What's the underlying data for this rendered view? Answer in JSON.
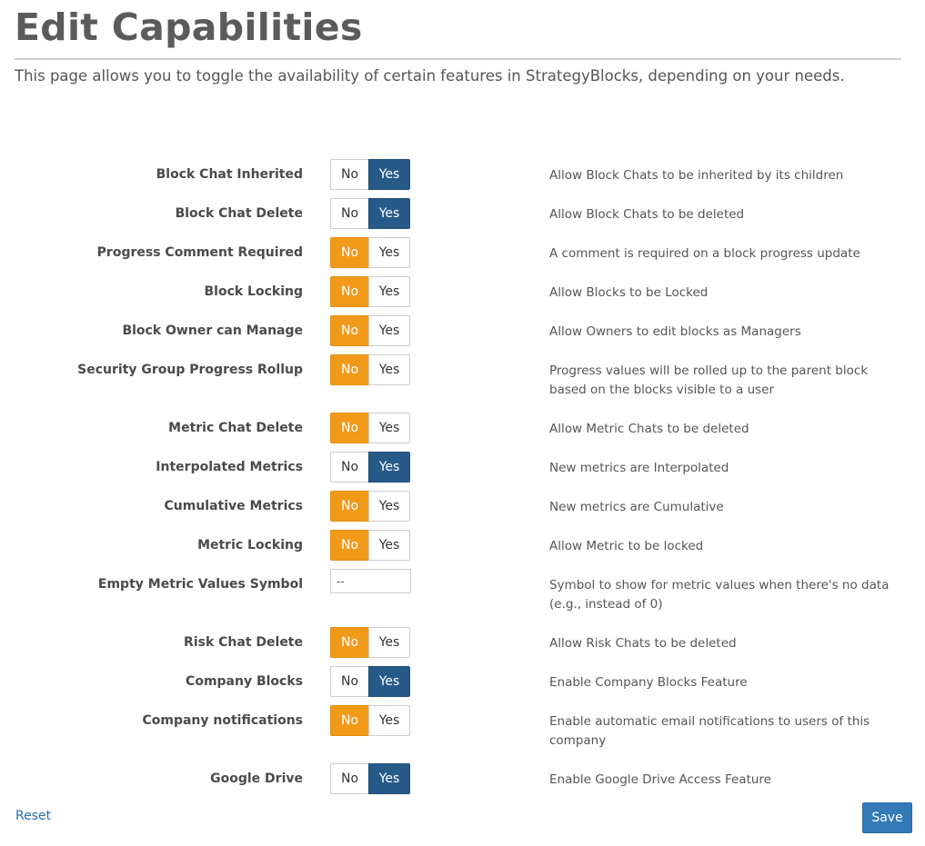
{
  "header": {
    "title": "Edit Capabilities",
    "intro": "This page allows you to toggle the availability of certain features in StrategyBlocks, depending on your needs."
  },
  "toggle_labels": {
    "no": "No",
    "yes": "Yes"
  },
  "colors": {
    "no_active": "#f19a1a",
    "yes_active": "#265a88",
    "link": "#2a6db0"
  },
  "settings": [
    {
      "label": "Block Chat Inherited",
      "type": "toggle",
      "value": "Yes",
      "description": "Allow Block Chats to be inherited by its children"
    },
    {
      "label": "Block Chat Delete",
      "type": "toggle",
      "value": "Yes",
      "description": "Allow Block Chats to be deleted"
    },
    {
      "label": "Progress Comment Required",
      "type": "toggle",
      "value": "No",
      "description": "A comment is required on a block progress update"
    },
    {
      "label": "Block Locking",
      "type": "toggle",
      "value": "No",
      "description": "Allow Blocks to be Locked"
    },
    {
      "label": "Block Owner can Manage",
      "type": "toggle",
      "value": "No",
      "description": "Allow Owners to edit blocks as Managers"
    },
    {
      "label": "Security Group Progress Rollup",
      "type": "toggle",
      "value": "No",
      "description": "Progress values will be rolled up to the parent block based on the blocks visible to a user"
    },
    {
      "label": "Metric Chat Delete",
      "type": "toggle",
      "value": "No",
      "description": "Allow Metric Chats to be deleted"
    },
    {
      "label": "Interpolated Metrics",
      "type": "toggle",
      "value": "Yes",
      "description": "New metrics are Interpolated"
    },
    {
      "label": "Cumulative Metrics",
      "type": "toggle",
      "value": "No",
      "description": "New metrics are Cumulative"
    },
    {
      "label": "Metric Locking",
      "type": "toggle",
      "value": "No",
      "description": "Allow Metric to be locked"
    },
    {
      "label": "Empty Metric Values Symbol",
      "type": "text",
      "value": "--",
      "description": "Symbol to show for metric values when there's no data (e.g., instead of 0)"
    },
    {
      "label": "Risk Chat Delete",
      "type": "toggle",
      "value": "No",
      "description": "Allow Risk Chats to be deleted"
    },
    {
      "label": "Company Blocks",
      "type": "toggle",
      "value": "Yes",
      "description": "Enable Company Blocks Feature"
    },
    {
      "label": "Company notifications",
      "type": "toggle",
      "value": "No",
      "description": "Enable automatic email notifications to users of this company"
    },
    {
      "label": "Google Drive",
      "type": "toggle",
      "value": "Yes",
      "description": "Enable Google Drive Access Feature"
    }
  ],
  "footer": {
    "reset_label": "Reset",
    "save_label": "Save"
  }
}
